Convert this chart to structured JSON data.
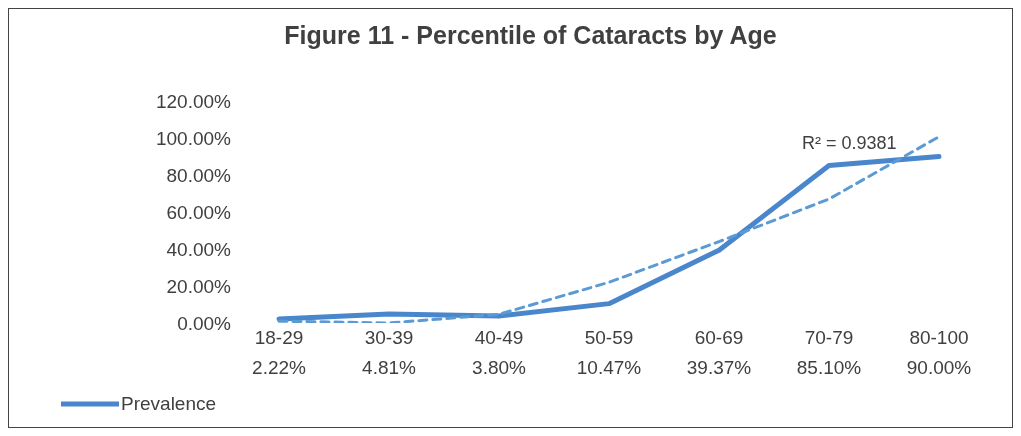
{
  "chart_data": {
    "type": "line",
    "title": "Figure 11 - Percentile of Cataracts by Age",
    "categories": [
      "18-29",
      "30-39",
      "40-49",
      "50-59",
      "60-69",
      "70-79",
      "80-100"
    ],
    "series": [
      {
        "name": "Prevalence",
        "color": "#4a86cc",
        "values": [
          2.22,
          4.81,
          3.8,
          10.47,
          39.37,
          85.1,
          90.0
        ],
        "value_labels": [
          "2.22%",
          "4.81%",
          "3.80%",
          "10.47%",
          "39.37%",
          "85.10%",
          "90.00%"
        ]
      },
      {
        "type": "line",
        "line_style": "dashed",
        "color": "#5b9bd5",
        "values": [
          1,
          0,
          4.7,
          22,
          44,
          67,
          100.7
        ]
      }
    ],
    "ylim": [
      0,
      120
    ],
    "yticks": [
      {
        "value": 0,
        "label": "0.00%"
      },
      {
        "value": 20,
        "label": "20.00%"
      },
      {
        "value": 40,
        "label": "40.00%"
      },
      {
        "value": 60,
        "label": "60.00%"
      },
      {
        "value": 80,
        "label": "80.00%"
      },
      {
        "value": 100,
        "label": "100.00%"
      },
      {
        "value": 120,
        "label": "120.00%"
      }
    ],
    "annotations": [
      "R² = 0.9381"
    ],
    "legend": "bottom",
    "grid": false,
    "marker": "none"
  }
}
